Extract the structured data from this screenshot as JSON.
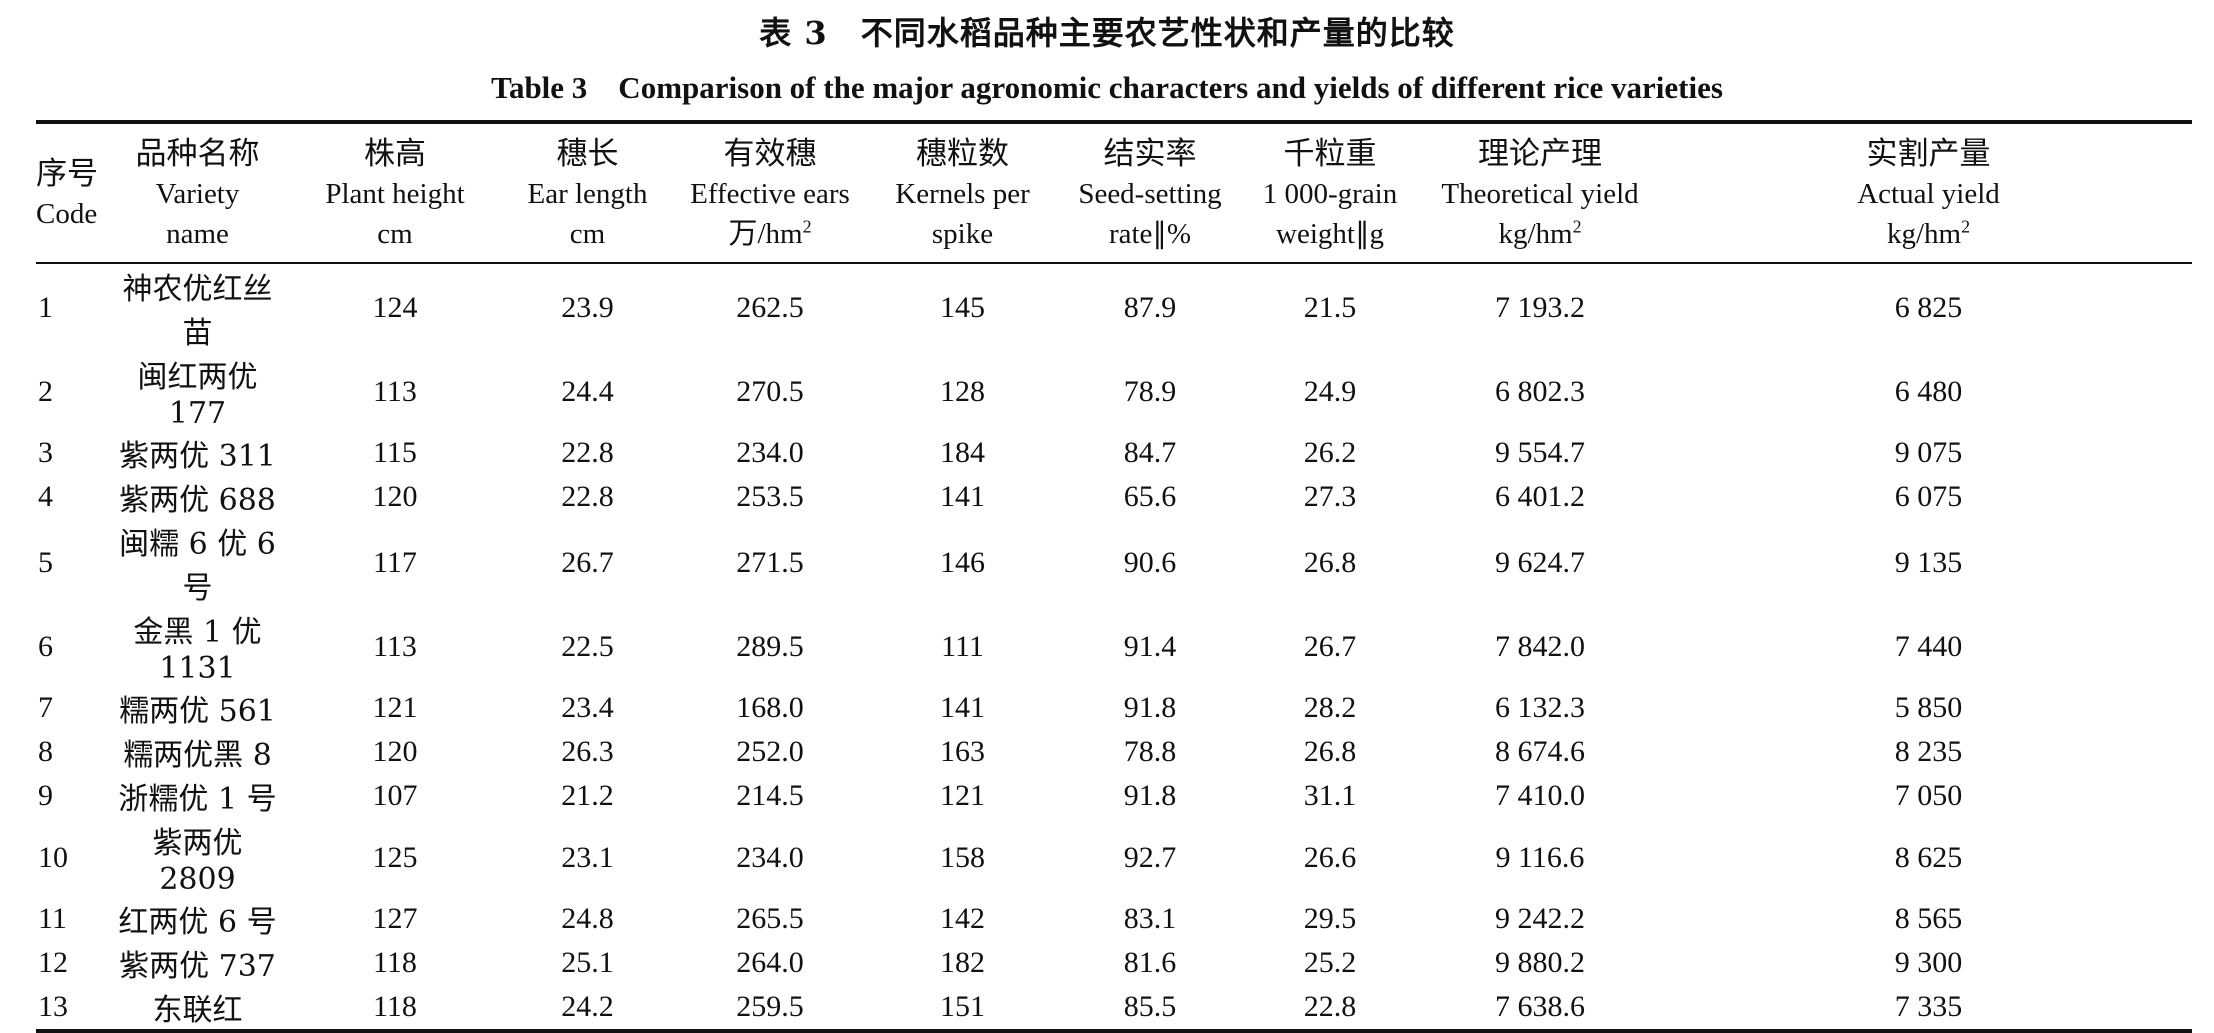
{
  "title_cn": "表 3　不同水稻品种主要农艺性状和产量的比较",
  "title_en": "Table 3　Comparison of the major agronomic characters and yields of different rice varieties",
  "headers": [
    {
      "cn": "序号",
      "en": [
        "Code"
      ]
    },
    {
      "cn": "品种名称",
      "en": [
        "Variety",
        "name"
      ]
    },
    {
      "cn": "株高",
      "en": [
        "Plant height",
        "cm"
      ]
    },
    {
      "cn": "穗长",
      "en": [
        "Ear length",
        "cm"
      ]
    },
    {
      "cn": "有效穗",
      "en": [
        "Effective ears",
        "万/hm"
      ],
      "sup": "2"
    },
    {
      "cn": "穗粒数",
      "en": [
        "Kernels per",
        "spike"
      ]
    },
    {
      "cn": "结实率",
      "en": [
        "Seed-setting",
        "rate∥%"
      ]
    },
    {
      "cn": "千粒重",
      "en": [
        "1 000-grain",
        "weight∥g"
      ]
    },
    {
      "cn": "理论产理",
      "en": [
        "Theoretical yield",
        "kg/hm"
      ],
      "sup": "2"
    },
    {
      "cn": "实割产量",
      "en": [
        "Actual yield",
        "kg/hm"
      ],
      "sup": "2"
    }
  ],
  "rows": [
    [
      "1",
      "神农优红丝苗",
      "124",
      "23.9",
      "262.5",
      "145",
      "87.9",
      "21.5",
      "7 193.2",
      "6 825"
    ],
    [
      "2",
      "闽红两优 177",
      "113",
      "24.4",
      "270.5",
      "128",
      "78.9",
      "24.9",
      "6 802.3",
      "6 480"
    ],
    [
      "3",
      "紫两优 311",
      "115",
      "22.8",
      "234.0",
      "184",
      "84.7",
      "26.2",
      "9 554.7",
      "9 075"
    ],
    [
      "4",
      "紫两优 688",
      "120",
      "22.8",
      "253.5",
      "141",
      "65.6",
      "27.3",
      "6 401.2",
      "6 075"
    ],
    [
      "5",
      "闽糯 6 优 6 号",
      "117",
      "26.7",
      "271.5",
      "146",
      "90.6",
      "26.8",
      "9 624.7",
      "9 135"
    ],
    [
      "6",
      "金黑 1 优 1131",
      "113",
      "22.5",
      "289.5",
      "111",
      "91.4",
      "26.7",
      "7 842.0",
      "7 440"
    ],
    [
      "7",
      "糯两优 561",
      "121",
      "23.4",
      "168.0",
      "141",
      "91.8",
      "28.2",
      "6 132.3",
      "5 850"
    ],
    [
      "8",
      "糯两优黑 8",
      "120",
      "26.3",
      "252.0",
      "163",
      "78.8",
      "26.8",
      "8 674.6",
      "8 235"
    ],
    [
      "9",
      "浙糯优 1 号",
      "107",
      "21.2",
      "214.5",
      "121",
      "91.8",
      "31.1",
      "7 410.0",
      "7 050"
    ],
    [
      "10",
      "紫两优 2809",
      "125",
      "23.1",
      "234.0",
      "158",
      "92.7",
      "26.6",
      "9 116.6",
      "8 625"
    ],
    [
      "11",
      "红两优 6 号",
      "127",
      "24.8",
      "265.5",
      "142",
      "83.1",
      "29.5",
      "9 242.2",
      "8 565"
    ],
    [
      "12",
      "紫两优 737",
      "118",
      "25.1",
      "264.0",
      "182",
      "81.6",
      "25.2",
      "9 880.2",
      "9 300"
    ],
    [
      "13",
      "东联红",
      "118",
      "24.2",
      "259.5",
      "151",
      "85.5",
      "22.8",
      "7 638.6",
      "7 335"
    ]
  ]
}
